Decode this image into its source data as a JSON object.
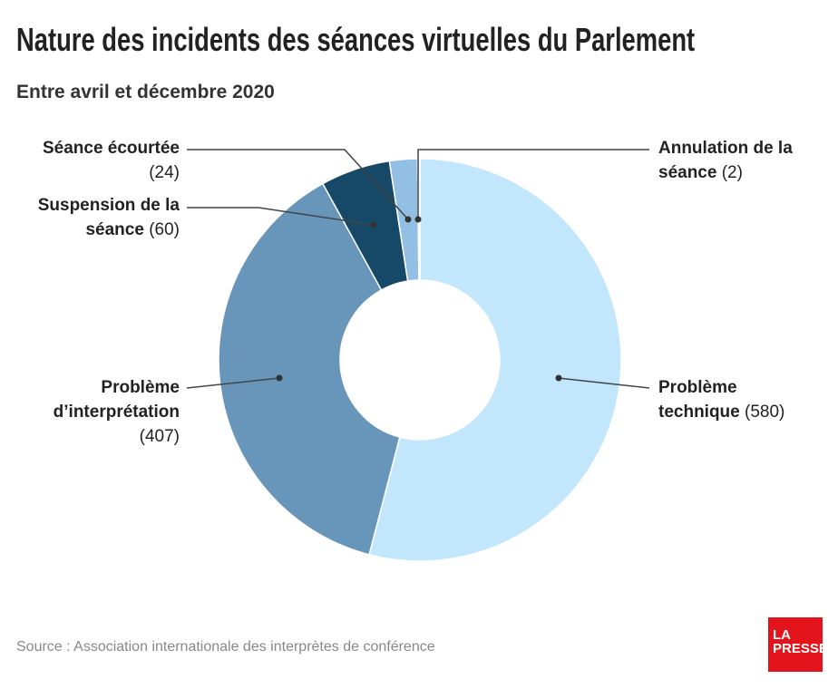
{
  "title": "Nature des incidents des séances virtuelles du Parlement",
  "subtitle": "Entre avril et décembre 2020",
  "source": "Source : Association internationale des interprètes de conférence",
  "logo": "LA PRESSE",
  "chart_data": {
    "type": "pie",
    "donut": true,
    "title": "Nature des incidents des séances virtuelles du Parlement",
    "start": "top, clockwise",
    "slices": [
      {
        "label_a": "Problème",
        "label_b": "technique",
        "value": 580,
        "value_text": "(580)",
        "color": "#c2e6fc"
      },
      {
        "label_a": "Problème",
        "label_b": "d’interprétation",
        "value": 407,
        "value_text": "(407)",
        "color": "#6896ba"
      },
      {
        "label_a": "Suspension de la",
        "label_b": "séance",
        "value": 60,
        "value_text": "(60)",
        "color": "#164868"
      },
      {
        "label_a": "Séance écourtée",
        "label_b": "",
        "value": 24,
        "value_text": "(24)",
        "color": "#92bfe3"
      },
      {
        "label_a": "Annulation de la",
        "label_b": "séance",
        "value": 2,
        "value_text": "(2)",
        "color": "#d8e8f3"
      }
    ]
  }
}
